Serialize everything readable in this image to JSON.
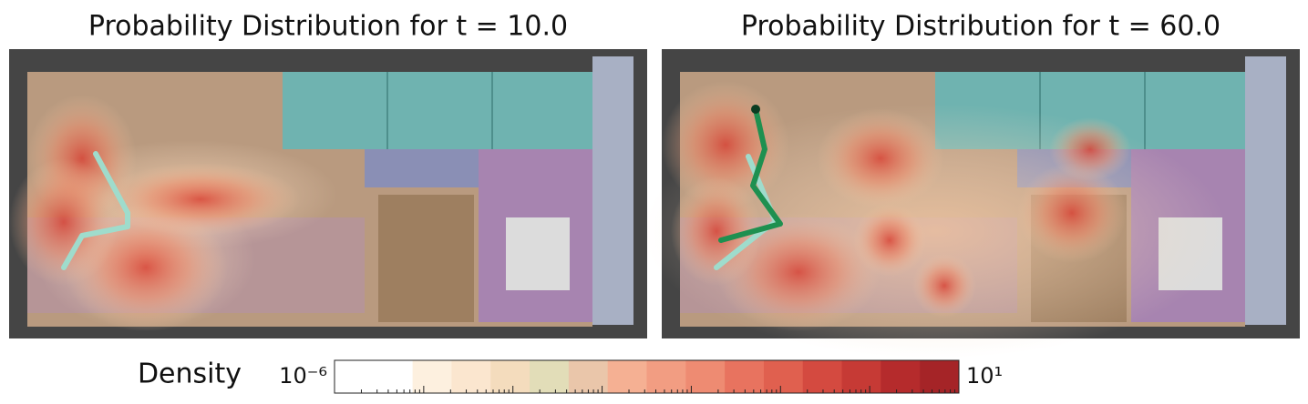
{
  "chart_data": [
    {
      "type": "heatmap",
      "title": "Probability Distribution for t = 10.0"
    },
    {
      "type": "heatmap",
      "title": "Probability Distribution for t = 60.0"
    },
    {
      "type": "colorbar",
      "label": "Density",
      "log_scale": true,
      "xlim": [
        1e-06,
        10
      ],
      "xticks": [
        {
          "value": 1e-06,
          "label": "10⁻⁶"
        },
        {
          "value": 10,
          "label": "10¹"
        }
      ],
      "minor_ticks": true,
      "colors": [
        "#ffffff",
        "#ffffff",
        "#fdf0df",
        "#fbe6cf",
        "#f4dcbd",
        "#e2ddb8",
        "#eac6aa",
        "#f5b093",
        "#f29d82",
        "#ee8b72",
        "#e8735f",
        "#e0604f",
        "#d44a40",
        "#c63a35",
        "#b52b2c",
        "#a52427"
      ]
    }
  ]
}
